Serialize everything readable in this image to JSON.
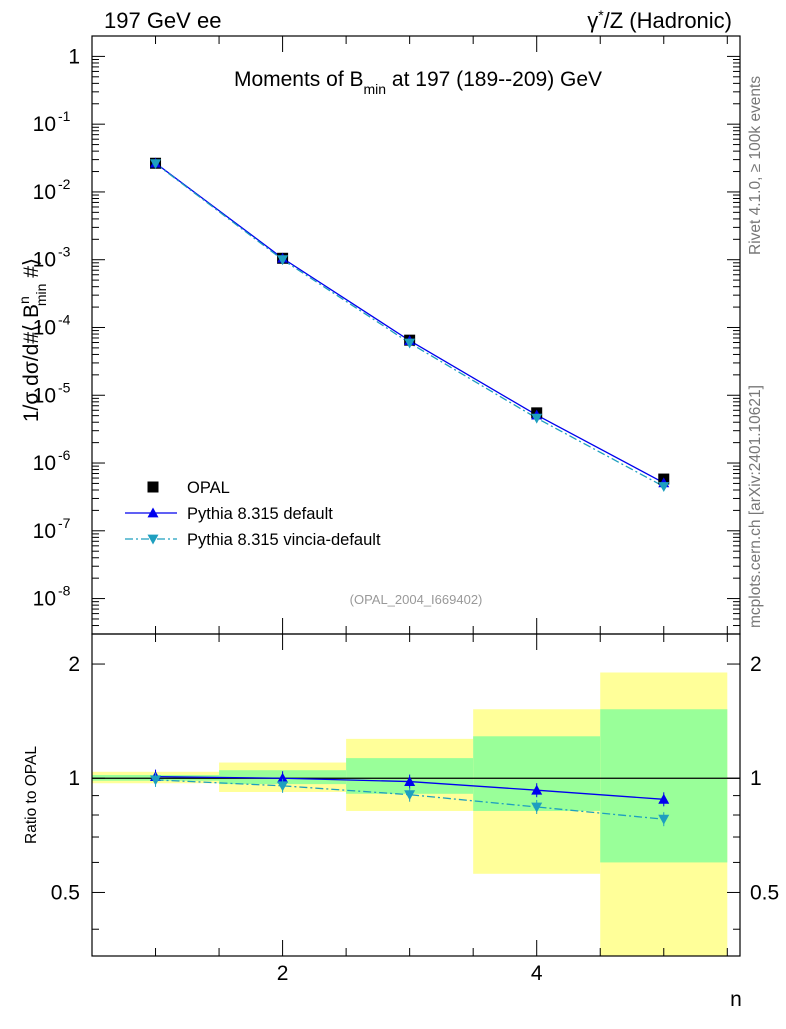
{
  "header": {
    "left": "197 GeV ee",
    "right_prefix": "γ",
    "right_sup": "*",
    "right_suffix": "/Z (Hadronic)"
  },
  "side_labels": {
    "rivet": "Rivet 4.1.0, ≥ 100k events",
    "mcplots": "mcplots.cern.ch [arXiv:2401.10621]"
  },
  "chart_data": [
    {
      "type": "line",
      "title_main": "Moments of B",
      "title_sub": "min",
      "title_rest": " at 197 (189--209) GeV",
      "analysis_tag": "(OPAL_2004_I669402)",
      "yscale": "log",
      "ylim": [
        3e-09,
        2.0
      ],
      "xlim": [
        0.5,
        5.6
      ],
      "ylabel": {
        "a": "1/σ  dσ/d#⟨ B",
        "sup": "n",
        "sub": "min",
        "b": " #⟩"
      },
      "yticks": [
        {
          "exp": "",
          "base": "1",
          "value": 1
        },
        {
          "exp": "-1",
          "base": "10",
          "value": 0.1
        },
        {
          "exp": "-2",
          "base": "10",
          "value": 0.01
        },
        {
          "exp": "-3",
          "base": "10",
          "value": 0.001
        },
        {
          "exp": "-4",
          "base": "10",
          "value": 0.0001
        },
        {
          "exp": "-5",
          "base": "10",
          "value": 1e-05
        },
        {
          "exp": "-6",
          "base": "10",
          "value": 1e-06
        },
        {
          "exp": "-7",
          "base": "10",
          "value": 1e-07
        },
        {
          "exp": "-8",
          "base": "10",
          "value": 1e-08
        }
      ],
      "x": [
        1,
        2,
        3,
        4,
        5
      ],
      "series": [
        {
          "name": "OPAL",
          "marker": "square",
          "color": "#000000",
          "values": [
            0.0265,
            0.00105,
            6.5e-05,
            5.5e-06,
            5.8e-07
          ]
        },
        {
          "name": "Pythia 8.315 default",
          "marker": "triangle-up",
          "color": "#0000ee",
          "line": "solid",
          "values": [
            0.0266,
            0.00105,
            6.4e-05,
            5.1e-06,
            5.1e-07
          ]
        },
        {
          "name": "Pythia 8.315 vincia-default",
          "marker": "triangle-down",
          "color": "#1e9fbf",
          "line": "dashdot",
          "values": [
            0.0262,
            0.001,
            5.9e-05,
            4.6e-06,
            4.5e-07
          ]
        }
      ],
      "legend_position": "bottom-left"
    },
    {
      "type": "line",
      "ylabel": "Ratio to OPAL",
      "xlabel": "n",
      "ylim": [
        0.34,
        2.4
      ],
      "xlim": [
        0.5,
        5.6
      ],
      "yticks": [
        "0.5",
        "1",
        "2"
      ],
      "xticks": [
        "2",
        "4"
      ],
      "reference_line": 1,
      "bins": [
        {
          "lo": 0.5,
          "hi": 1.5,
          "yellow": [
            0.97,
            1.04
          ],
          "green": [
            0.985,
            1.02
          ]
        },
        {
          "lo": 1.5,
          "hi": 2.5,
          "yellow": [
            0.92,
            1.1
          ],
          "green": [
            0.965,
            1.05
          ]
        },
        {
          "lo": 2.5,
          "hi": 3.5,
          "yellow": [
            0.82,
            1.27
          ],
          "green": [
            0.91,
            1.13
          ]
        },
        {
          "lo": 3.5,
          "hi": 4.5,
          "yellow": [
            0.56,
            1.52
          ],
          "green": [
            0.82,
            1.29
          ]
        },
        {
          "lo": 4.5,
          "hi": 5.5,
          "yellow": [
            0.34,
            1.9
          ],
          "green": [
            0.6,
            1.52
          ]
        }
      ],
      "x": [
        1,
        2,
        3,
        4,
        5
      ],
      "series": [
        {
          "name": "Pythia 8.315 default",
          "color": "#0000ee",
          "values": [
            1.01,
            1.0,
            0.98,
            0.93,
            0.88
          ]
        },
        {
          "name": "Pythia 8.315 vincia-default",
          "color": "#1e9fbf",
          "values": [
            0.99,
            0.955,
            0.905,
            0.84,
            0.78
          ]
        }
      ]
    }
  ]
}
